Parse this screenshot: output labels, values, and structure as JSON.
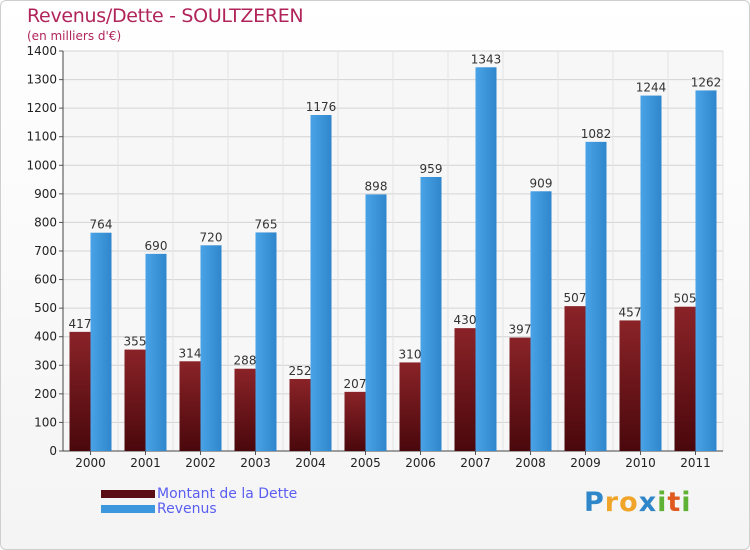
{
  "header": {
    "title": "Revenus/Dette - SOULTZEREN",
    "subtitle": "(en milliers d'€)"
  },
  "chart_data": {
    "type": "bar",
    "categories": [
      "2000",
      "2001",
      "2002",
      "2003",
      "2004",
      "2005",
      "2006",
      "2007",
      "2008",
      "2009",
      "2010",
      "2011"
    ],
    "series": [
      {
        "name": "Montant de la Dette",
        "color": "#7a1a1e",
        "values": [
          417,
          355,
          314,
          288,
          252,
          207,
          310,
          430,
          397,
          507,
          457,
          505
        ]
      },
      {
        "name": "Revenus",
        "color": "#3d97dd",
        "values": [
          764,
          690,
          720,
          765,
          1176,
          898,
          959,
          1343,
          909,
          1082,
          1244,
          1262
        ]
      }
    ],
    "ylim": [
      0,
      1400
    ],
    "yticks": [
      0,
      100,
      200,
      300,
      400,
      500,
      600,
      700,
      800,
      900,
      1000,
      1100,
      1200,
      1300,
      1400
    ],
    "grid": true,
    "legend": "bottom-left"
  },
  "legend": {
    "items": [
      {
        "label": "Montant de la Dette",
        "color": "#5a0d12"
      },
      {
        "label": "Revenus",
        "color": "#3d97dd"
      }
    ]
  },
  "brand": {
    "letters": [
      "P",
      "r",
      "o",
      "x",
      "i",
      "t",
      "i"
    ],
    "colors": [
      "#2f86c9",
      "#f0a52a",
      "#f0a52a",
      "#2f86c9",
      "#5fb233",
      "#e05a1f",
      "#5fb233"
    ]
  }
}
